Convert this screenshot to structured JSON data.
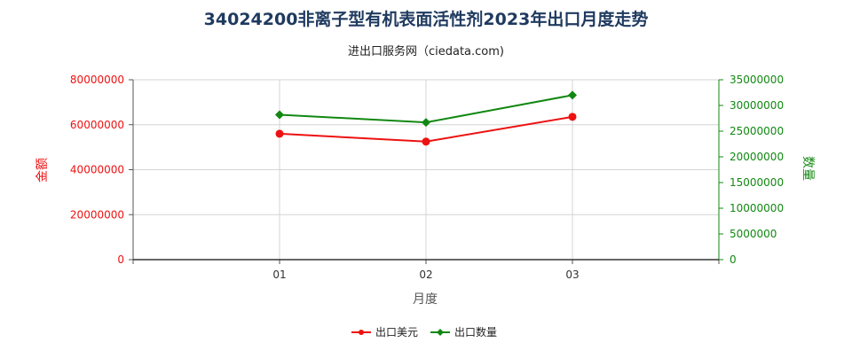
{
  "chart_data": {
    "type": "line",
    "title": "34024200非离子型有机表面活性剂2023年出口月度走势",
    "subtitle": "进出口服务网（ciedata.com)",
    "xlabel": "月度",
    "ylabel_left": "金额",
    "ylabel_right": "数量",
    "categories": [
      "01",
      "02",
      "03"
    ],
    "series": [
      {
        "name": "出口美元",
        "axis": "left",
        "color": "#ee1111",
        "values": [
          56000000,
          52500000,
          63500000
        ]
      },
      {
        "name": "出口数量",
        "axis": "right",
        "color": "#118811",
        "values": [
          28200000,
          26700000,
          32000000
        ]
      }
    ],
    "ylim_left": [
      0,
      80000000
    ],
    "ylim_right": [
      0,
      35000000
    ],
    "yticks_left": [
      "0",
      "20000000",
      "40000000",
      "60000000",
      "80000000"
    ],
    "yticks_right": [
      "0",
      "5000000",
      "10000000",
      "15000000",
      "20000000",
      "25000000",
      "30000000",
      "35000000"
    ],
    "grid": true,
    "legend_position": "bottom"
  }
}
